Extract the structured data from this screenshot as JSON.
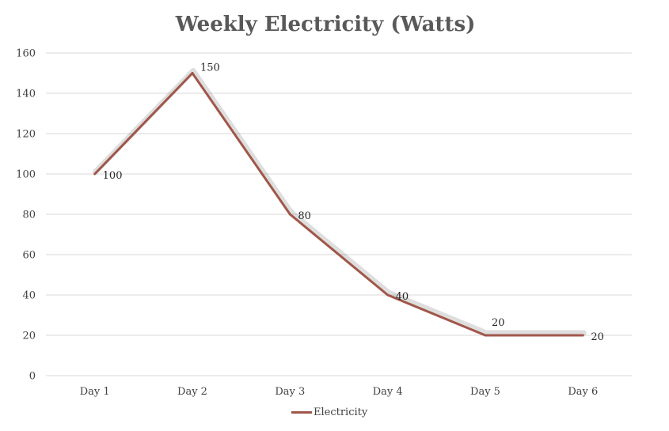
{
  "chart_data": {
    "type": "line",
    "title": "Weekly Electricity (Watts)",
    "categories": [
      "Day 1",
      "Day 2",
      "Day 3",
      "Day 4",
      "Day 5",
      "Day 6"
    ],
    "series": [
      {
        "name": "Electricity",
        "values": [
          100,
          150,
          80,
          40,
          20,
          20
        ],
        "color": "#a0574a"
      }
    ],
    "data_labels": [
      "100",
      "150",
      "80",
      "40",
      "20",
      "20"
    ],
    "yticks": [
      "0",
      "20",
      "40",
      "60",
      "80",
      "100",
      "120",
      "140",
      "160"
    ],
    "ylim": [
      0,
      160
    ],
    "grid": true,
    "legend_position": "bottom"
  }
}
